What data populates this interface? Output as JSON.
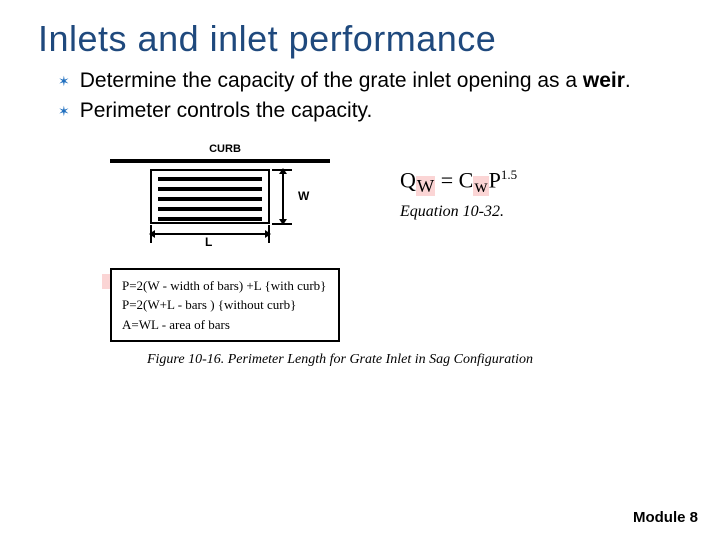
{
  "title": "Inlets and inlet performance",
  "bullets": [
    {
      "pre": "Determine the capacity of the grate inlet opening as a ",
      "bold": "weir",
      "post": "."
    },
    {
      "pre": "Perimeter controls the capacity.",
      "bold": "",
      "post": ""
    }
  ],
  "diagram": {
    "curb_label": "CURB",
    "w_label": "W",
    "l_label": "L",
    "bar_count": 5
  },
  "perimeter_formulas": {
    "line1": "P=2(W - width of bars) +L {with curb}",
    "line2": "P=2(W+L - bars ) {without curb}",
    "line3": "A=WL - area of bars"
  },
  "figure_caption": "Figure 10-16.  Perimeter Length for Grate Inlet in Sag Configuration",
  "equation": {
    "lhs": "Q",
    "lhs_sub_pre": "",
    "lhs_sub_hl": "W",
    "eq": " = ",
    "coef": "C",
    "coef_sub_hl": "w",
    "var": "P",
    "exp": "1.5",
    "caption": "Equation 10-32."
  },
  "footer": "Module 8",
  "colors": {
    "title": "#1f497d",
    "highlight": "#fbd5d5",
    "text": "#000000"
  }
}
